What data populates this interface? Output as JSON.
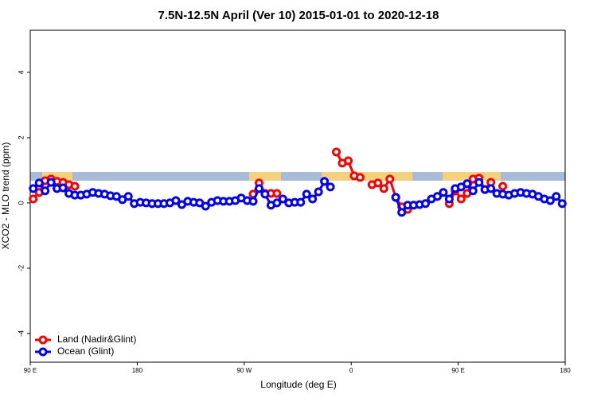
{
  "chart_data": {
    "type": "line",
    "title": "7.5N-12.5N April (Ver 10)   2015-01-01 to 2020-12-18",
    "x_label": "Longitude (deg E)",
    "y_label": "XCO2 - MLO trend (ppm)",
    "x": [
      92.5,
      97.5,
      102.5,
      107.5,
      112.5,
      117.5,
      122.5,
      127.5,
      132.5,
      137.5,
      142.5,
      147.5,
      152.5,
      157.5,
      162.5,
      167.5,
      172.5,
      177.5,
      182.5,
      187.5,
      192.5,
      197.5,
      202.5,
      207.5,
      212.5,
      217.5,
      222.5,
      227.5,
      232.5,
      237.5,
      242.5,
      247.5,
      252.5,
      257.5,
      262.5,
      267.5,
      272.5,
      277.5,
      282.5,
      287.5,
      292.5,
      297.5,
      302.5,
      307.5,
      312.5,
      317.5,
      322.5,
      327.5,
      332.5,
      337.5,
      342.5,
      347.5,
      352.5,
      357.5,
      362.5,
      367.5,
      372.5,
      377.5,
      382.5,
      387.5,
      392.5,
      397.5,
      402.5,
      407.5,
      412.5,
      417.5,
      422.5,
      427.5,
      432.5,
      437.5,
      442.5,
      447.5,
      452.5,
      457.5,
      462.5,
      467.5,
      472.5,
      477.5,
      482.5,
      487.5,
      492.5,
      497.5,
      502.5,
      507.5,
      512.5,
      517.5,
      522.5,
      527.5,
      532.5,
      537.5
    ],
    "series": [
      {
        "name": "Land (Nadir&Glint)",
        "color": "#ff0000",
        "values": [
          0.12,
          0.32,
          0.68,
          0.73,
          0.66,
          0.63,
          0.56,
          0.51,
          null,
          null,
          null,
          null,
          null,
          null,
          null,
          null,
          null,
          null,
          null,
          null,
          null,
          null,
          null,
          null,
          null,
          null,
          null,
          null,
          null,
          null,
          null,
          null,
          null,
          null,
          null,
          null,
          null,
          0.27,
          0.61,
          0.29,
          0.29,
          0.29,
          null,
          null,
          null,
          null,
          null,
          null,
          null,
          null,
          null,
          1.56,
          1.22,
          1.29,
          0.83,
          0.78,
          null,
          0.56,
          0.61,
          0.44,
          0.73,
          0.17,
          -0.12,
          -0.2,
          null,
          null,
          null,
          null,
          null,
          null,
          -0.02,
          0.37,
          0.12,
          0.29,
          0.73,
          0.76,
          0.41,
          0.63,
          null,
          0.51,
          null,
          null,
          null,
          null,
          null,
          null,
          null,
          null,
          null,
          null
        ]
      },
      {
        "name": "Ocean (Glint)",
        "color": "#0000ff",
        "values": [
          0.44,
          0.61,
          0.37,
          0.63,
          0.44,
          0.46,
          0.29,
          0.24,
          0.24,
          0.27,
          0.32,
          0.29,
          0.27,
          0.22,
          0.2,
          0.1,
          0.2,
          -0.02,
          0.02,
          0,
          -0.02,
          -0.02,
          -0.02,
          0,
          0.07,
          -0.05,
          0.05,
          0.02,
          0,
          -0.1,
          0.02,
          0.07,
          0.05,
          0.05,
          0.07,
          0.15,
          0.07,
          0.05,
          0.44,
          0.27,
          -0.07,
          0,
          0.12,
          0,
          0.02,
          0.02,
          0.27,
          0.12,
          0.34,
          0.66,
          0.49,
          null,
          null,
          null,
          null,
          null,
          null,
          null,
          null,
          null,
          null,
          0.17,
          -0.29,
          -0.07,
          -0.07,
          -0.05,
          -0.02,
          0.12,
          0.2,
          0.32,
          0.12,
          0.44,
          0.49,
          0.59,
          0.37,
          0.63,
          0.41,
          0.44,
          0.29,
          0.27,
          0.24,
          0.29,
          0.32,
          0.29,
          0.27,
          0.2,
          0.12,
          0.07,
          0.2,
          -0.02
        ]
      }
    ],
    "xlim": [
      90,
      540
    ],
    "xticks": [
      {
        "value": 90,
        "label": "90 E"
      },
      180,
      {
        "value": 270,
        "label": "90 W"
      },
      {
        "value": 360,
        "label": "0"
      },
      {
        "value": 450,
        "label": "90 E"
      },
      {
        "value": 540,
        "label": "180"
      }
    ],
    "ylim": [
      -4.88,
      5.29
    ],
    "yticks": [
      -4,
      -2,
      0,
      2,
      4
    ],
    "legend": "bottom-left"
  }
}
